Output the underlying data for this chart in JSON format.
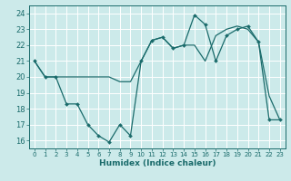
{
  "xlabel": "Humidex (Indice chaleur)",
  "bg_color": "#cceaea",
  "line_color": "#1a6b6b",
  "grid_color": "#ffffff",
  "ylim": [
    15.5,
    24.5
  ],
  "xlim": [
    -0.5,
    23.5
  ],
  "yticks": [
    16,
    17,
    18,
    19,
    20,
    21,
    22,
    23,
    24
  ],
  "xticks": [
    0,
    1,
    2,
    3,
    4,
    5,
    6,
    7,
    8,
    9,
    10,
    11,
    12,
    13,
    14,
    15,
    16,
    17,
    18,
    19,
    20,
    21,
    22,
    23
  ],
  "series1_x": [
    0,
    1,
    2,
    3,
    4,
    5,
    6,
    7,
    8,
    9,
    10,
    11,
    12,
    13,
    14,
    15,
    16,
    17,
    18,
    19,
    20,
    21,
    22,
    23
  ],
  "series1_y": [
    21,
    20,
    20,
    20,
    20,
    20,
    20,
    20,
    19.7,
    19.7,
    21,
    22.3,
    22.5,
    21.8,
    22,
    22,
    21,
    22.6,
    23,
    23.2,
    23,
    22.2,
    18.8,
    17.3
  ],
  "series2_x": [
    0,
    1,
    2,
    3,
    4,
    5,
    6,
    7,
    8,
    9,
    10,
    11,
    12,
    13,
    14,
    15,
    16,
    17,
    18,
    19,
    20,
    21,
    22,
    23
  ],
  "series2_y": [
    21,
    20,
    20,
    18.3,
    18.3,
    17,
    16.3,
    15.9,
    17,
    16.3,
    21,
    22.3,
    22.5,
    21.8,
    22,
    23.9,
    23.3,
    21,
    22.6,
    23,
    23.2,
    22.2,
    17.3,
    17.3
  ]
}
